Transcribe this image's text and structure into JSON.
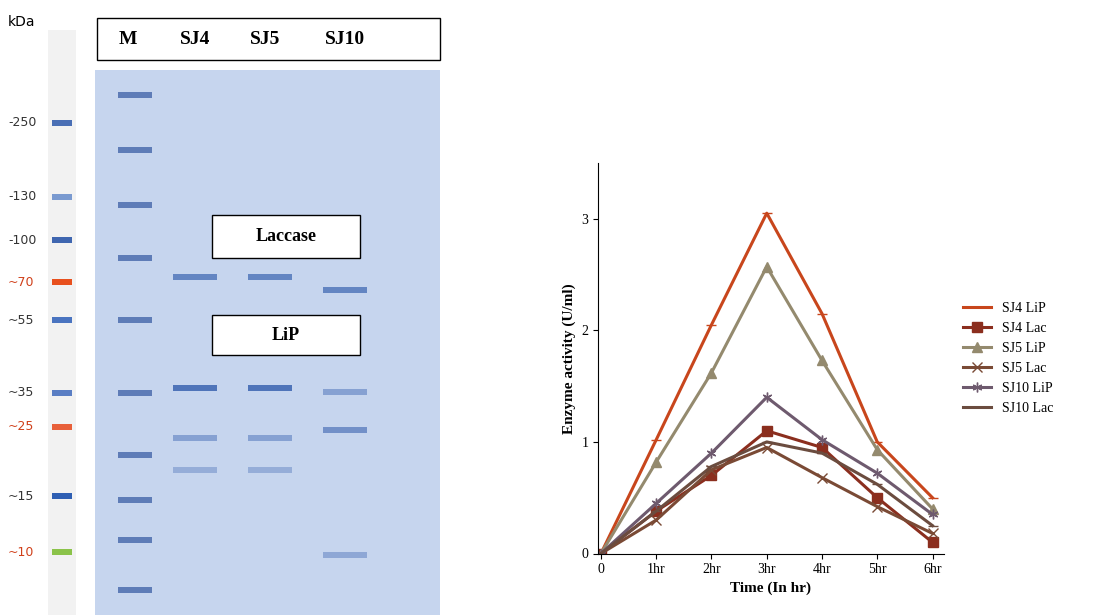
{
  "gel": {
    "unit_label": "kDa",
    "lanes": [
      "M",
      "SJ4",
      "SJ5",
      "SJ10"
    ],
    "ladder": [
      {
        "label": "-250",
        "color": "#4a6fb5"
      },
      {
        "label": "-130",
        "color": "#7a9ad0"
      },
      {
        "label": "-100",
        "color": "#3f66b0"
      },
      {
        "label": "~70",
        "color": "#e8501e"
      },
      {
        "label": "~55",
        "color": "#4a74c0"
      },
      {
        "label": "~35",
        "color": "#5a7ec4"
      },
      {
        "label": "~25",
        "color": "#e8603a"
      },
      {
        "label": "~15",
        "color": "#2f5fb3"
      },
      {
        "label": "~10",
        "color": "#8bc34a"
      }
    ],
    "band_labels": [
      "Laccase",
      "LiP"
    ]
  },
  "chart_data": {
    "type": "line",
    "x_label": "Time (In hr)",
    "y_label": "Enzyme activity (U/ml)",
    "categories": [
      "0",
      "1hr",
      "2hr",
      "3hr",
      "4hr",
      "5hr",
      "6hr"
    ],
    "ylim": [
      0,
      3.5
    ],
    "yticks": [
      0,
      1,
      2,
      3
    ],
    "grid": false,
    "legend": "right",
    "series": [
      {
        "name": "SJ4 LiP",
        "color": "#c8461c",
        "marker": "dash",
        "values": [
          0,
          1.02,
          2.05,
          3.05,
          2.15,
          1.0,
          0.5
        ]
      },
      {
        "name": "SJ4 Lac",
        "color": "#8b2e1e",
        "marker": "square",
        "values": [
          0,
          0.38,
          0.7,
          1.1,
          0.95,
          0.5,
          0.1
        ]
      },
      {
        "name": "SJ5 LiP",
        "color": "#948a6e",
        "marker": "triangle",
        "values": [
          0,
          0.82,
          1.62,
          2.57,
          1.73,
          0.93,
          0.4
        ]
      },
      {
        "name": "SJ5 Lac",
        "color": "#7a4a35",
        "marker": "x",
        "values": [
          0,
          0.3,
          0.75,
          0.95,
          0.68,
          0.42,
          0.18
        ]
      },
      {
        "name": "SJ10 LiP",
        "color": "#6e5a6e",
        "marker": "asterisk",
        "values": [
          0,
          0.45,
          0.9,
          1.4,
          1.02,
          0.72,
          0.35
        ]
      },
      {
        "name": "SJ10 Lac",
        "color": "#6b4c3f",
        "marker": "dash",
        "values": [
          0,
          0.38,
          0.78,
          1.0,
          0.9,
          0.62,
          0.25
        ]
      }
    ]
  }
}
